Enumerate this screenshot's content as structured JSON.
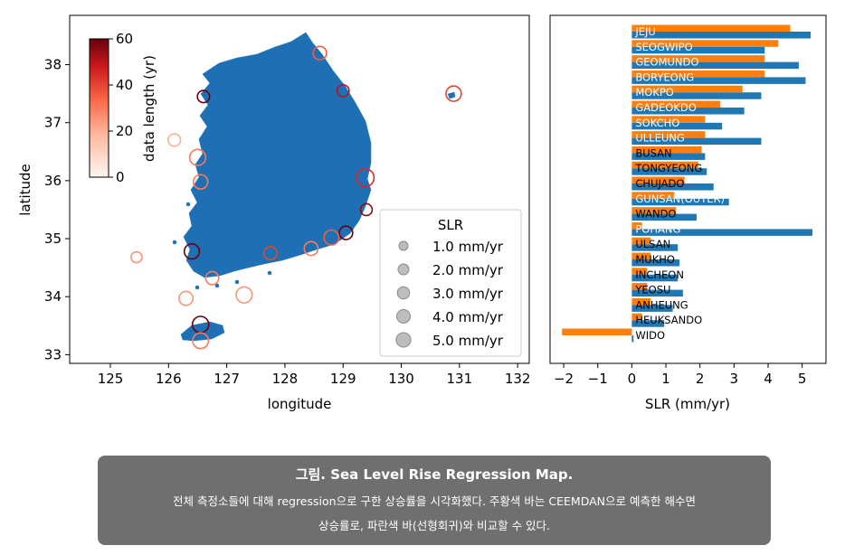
{
  "colors": {
    "map_land": "#1f6fb4",
    "bar_blue": "#1f77b4",
    "bar_orange": "#ff7f0e",
    "cmap_low": "#fff5f0",
    "cmap_mid": "#fb6a4a",
    "cmap_high": "#67000d"
  },
  "caption": {
    "title": "그림. Sea Level Rise Regression Map.",
    "line1": "전체 측정소들에 대해 regression으로 구한 상승률을 시각화했다. 주황색 바는 CEEMDAN으로 예측한 해수면",
    "line2": "상승률로, 파란색 바(선형회귀)와 비교할 수 있다."
  },
  "chart_data": [
    {
      "type": "scatter",
      "xlabel": "longitude",
      "ylabel": "latitude",
      "xlim": [
        124.3,
        132.2
      ],
      "ylim": [
        32.85,
        38.85
      ],
      "xticks": [
        125,
        126,
        127,
        128,
        129,
        130,
        131,
        132
      ],
      "yticks": [
        33,
        34,
        35,
        36,
        37,
        38
      ],
      "colorbar": {
        "label": "data length (yr)",
        "ticks": [
          0,
          20,
          40,
          60
        ],
        "range": [
          0,
          60
        ]
      },
      "legend": {
        "title": "SLR",
        "placement": "lower-right",
        "entries": [
          "1.0 mm/yr",
          "2.0 mm/yr",
          "3.0 mm/yr",
          "4.0 mm/yr",
          "5.0 mm/yr"
        ],
        "values": [
          1,
          2,
          3,
          4,
          5
        ]
      },
      "points": [
        {
          "lon": 128.6,
          "lat": 38.2,
          "slr": 2.1,
          "len": 35
        },
        {
          "lon": 129.0,
          "lat": 37.55,
          "slr": 1.4,
          "len": 50
        },
        {
          "lon": 130.9,
          "lat": 37.5,
          "slr": 3.2,
          "len": 40
        },
        {
          "lon": 126.6,
          "lat": 37.45,
          "slr": 1.5,
          "len": 60
        },
        {
          "lon": 126.1,
          "lat": 36.7,
          "slr": 1.6,
          "len": 20
        },
        {
          "lon": 126.5,
          "lat": 36.4,
          "slr": 3.7,
          "len": 30
        },
        {
          "lon": 126.55,
          "lat": 35.98,
          "slr": 2.6,
          "len": 30
        },
        {
          "lon": 129.38,
          "lat": 36.05,
          "slr": 5.0,
          "len": 45
        },
        {
          "lon": 129.4,
          "lat": 35.5,
          "slr": 1.3,
          "len": 55
        },
        {
          "lon": 129.05,
          "lat": 35.1,
          "slr": 2.1,
          "len": 60
        },
        {
          "lon": 128.8,
          "lat": 35.02,
          "slr": 2.9,
          "len": 35
        },
        {
          "lon": 128.45,
          "lat": 34.83,
          "slr": 2.3,
          "len": 30
        },
        {
          "lon": 127.75,
          "lat": 34.75,
          "slr": 2.0,
          "len": 40
        },
        {
          "lon": 126.4,
          "lat": 34.78,
          "slr": 3.1,
          "len": 60
        },
        {
          "lon": 125.45,
          "lat": 34.68,
          "slr": 1.0,
          "len": 25
        },
        {
          "lon": 126.75,
          "lat": 34.32,
          "slr": 1.9,
          "len": 30
        },
        {
          "lon": 126.3,
          "lat": 33.97,
          "slr": 2.4,
          "len": 25
        },
        {
          "lon": 127.3,
          "lat": 34.03,
          "slr": 3.7,
          "len": 25
        },
        {
          "lon": 126.55,
          "lat": 33.52,
          "slr": 3.9,
          "len": 60
        },
        {
          "lon": 126.55,
          "lat": 33.24,
          "slr": 3.5,
          "len": 30
        }
      ]
    },
    {
      "type": "bar",
      "orientation": "horizontal",
      "xlabel": "SLR (mm/yr)",
      "xlim": [
        -2.4,
        5.7
      ],
      "xticks": [
        -2,
        -1,
        0,
        1,
        2,
        3,
        4,
        5
      ],
      "xtick_labels": [
        "−2",
        "−1",
        "0",
        "1",
        "2",
        "3",
        "4",
        "5"
      ],
      "categories": [
        "JEJU",
        "SEOGWIPO",
        "GEOMUNDO",
        "BORYEONG",
        "MOKPO",
        "GADEOKDO",
        "SOKCHO",
        "ULLEUNG",
        "BUSAN",
        "TONGYEONG",
        "CHUJADO",
        "GUNSAN(OUTER)",
        "WANDO",
        "POHANG",
        "ULSAN",
        "MUKHO",
        "INCHEON",
        "YEOSU",
        "ANHEUNG",
        "HEUKSANDO",
        "WIDO"
      ],
      "series": [
        {
          "values": [
            5.25,
            3.9,
            4.9,
            5.1,
            3.8,
            3.3,
            2.65,
            3.8,
            2.15,
            2.2,
            2.4,
            2.85,
            1.9,
            5.3,
            1.35,
            1.4,
            1.35,
            1.5,
            1.2,
            0.95,
            0.05
          ]
        },
        {
          "values": [
            4.65,
            4.3,
            3.9,
            3.9,
            3.25,
            2.6,
            2.15,
            2.15,
            2.05,
            1.95,
            1.55,
            1.25,
            1.3,
            0.3,
            0.55,
            0.55,
            0.45,
            0.45,
            0.55,
            0.3,
            -2.05
          ]
        }
      ]
    }
  ]
}
